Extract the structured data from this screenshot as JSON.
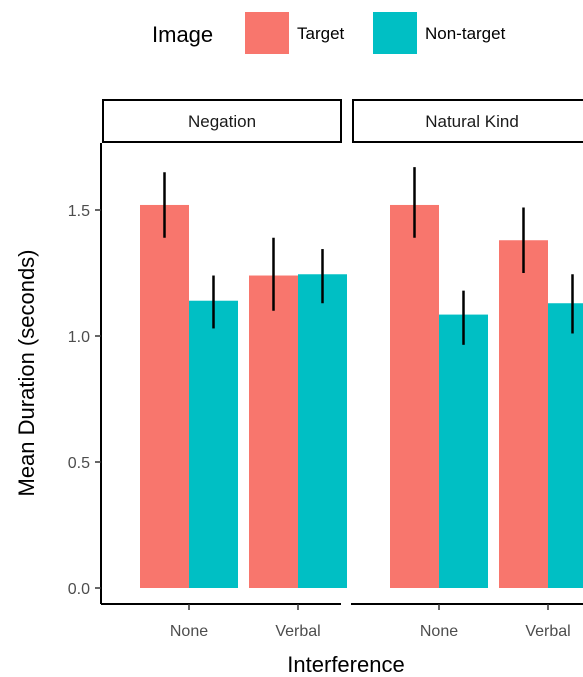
{
  "chart_data": {
    "type": "bar",
    "xlabel": "Interference",
    "ylabel": "Mean Duration (seconds)",
    "ylim": [
      0,
      1.75
    ],
    "yticks": [
      "0.0",
      "0.5",
      "1.0",
      "1.5"
    ],
    "legend": {
      "title": "Image",
      "placement": "top",
      "entries": [
        {
          "label": "Target",
          "color": "#F8766D"
        },
        {
          "label": "Non-target",
          "color": "#00BFC4"
        }
      ]
    },
    "panels": [
      {
        "label": "Negation",
        "categories": [
          "None",
          "Verbal"
        ],
        "series": [
          {
            "name": "Target",
            "color": "#F8766D",
            "values": [
              1.52,
              1.24
            ],
            "error_low": [
              1.39,
              1.1
            ],
            "error_high": [
              1.65,
              1.39
            ]
          },
          {
            "name": "Non-target",
            "color": "#00BFC4",
            "values": [
              1.14,
              1.245
            ],
            "error_low": [
              1.03,
              1.13
            ],
            "error_high": [
              1.24,
              1.345
            ]
          }
        ]
      },
      {
        "label": "Natural Kind",
        "categories": [
          "None",
          "Verbal"
        ],
        "series": [
          {
            "name": "Target",
            "color": "#F8766D",
            "values": [
              1.52,
              1.38
            ],
            "error_low": [
              1.39,
              1.25
            ],
            "error_high": [
              1.67,
              1.51
            ]
          },
          {
            "name": "Non-target",
            "color": "#00BFC4",
            "values": [
              1.085,
              1.13
            ],
            "error_low": [
              0.965,
              1.01
            ],
            "error_high": [
              1.18,
              1.245
            ]
          }
        ]
      }
    ]
  }
}
